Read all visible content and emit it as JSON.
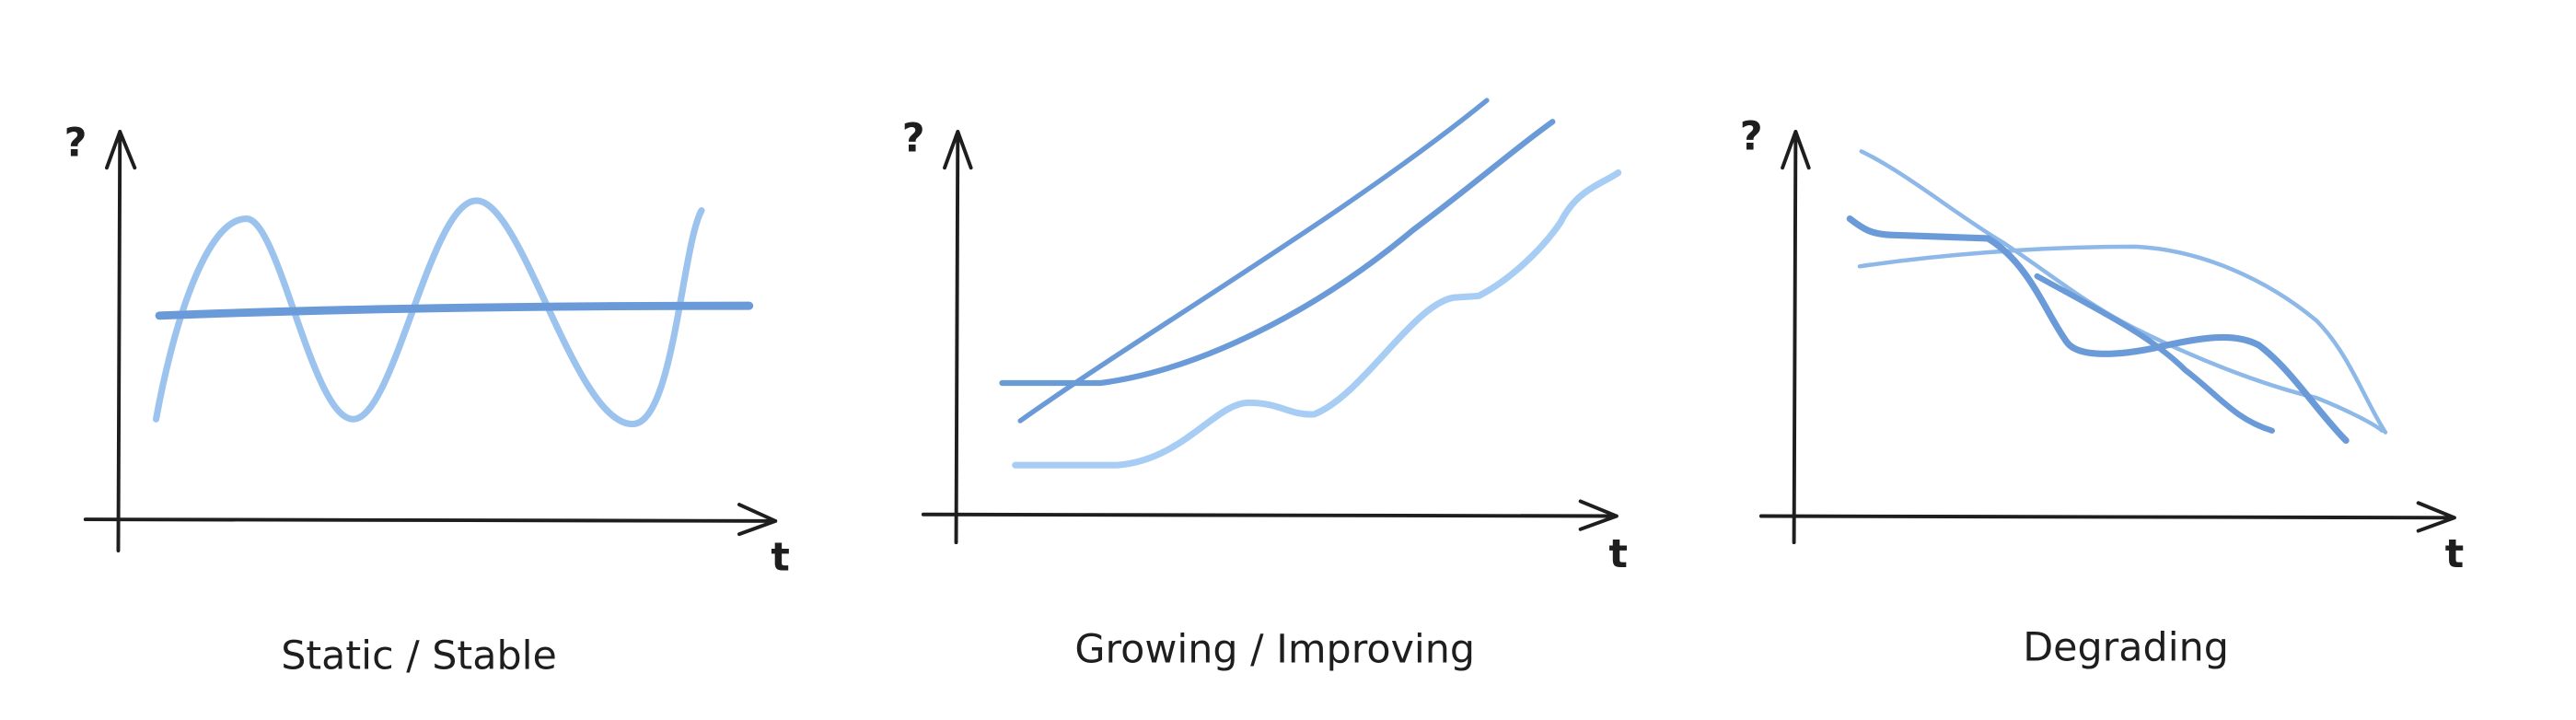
{
  "panels": [
    {
      "y_label": "?",
      "x_label": "t",
      "caption": "Static / Stable"
    },
    {
      "y_label": "?",
      "x_label": "t",
      "caption": "Growing / Improving"
    },
    {
      "y_label": "?",
      "x_label": "t",
      "caption": "Degrading"
    }
  ]
}
